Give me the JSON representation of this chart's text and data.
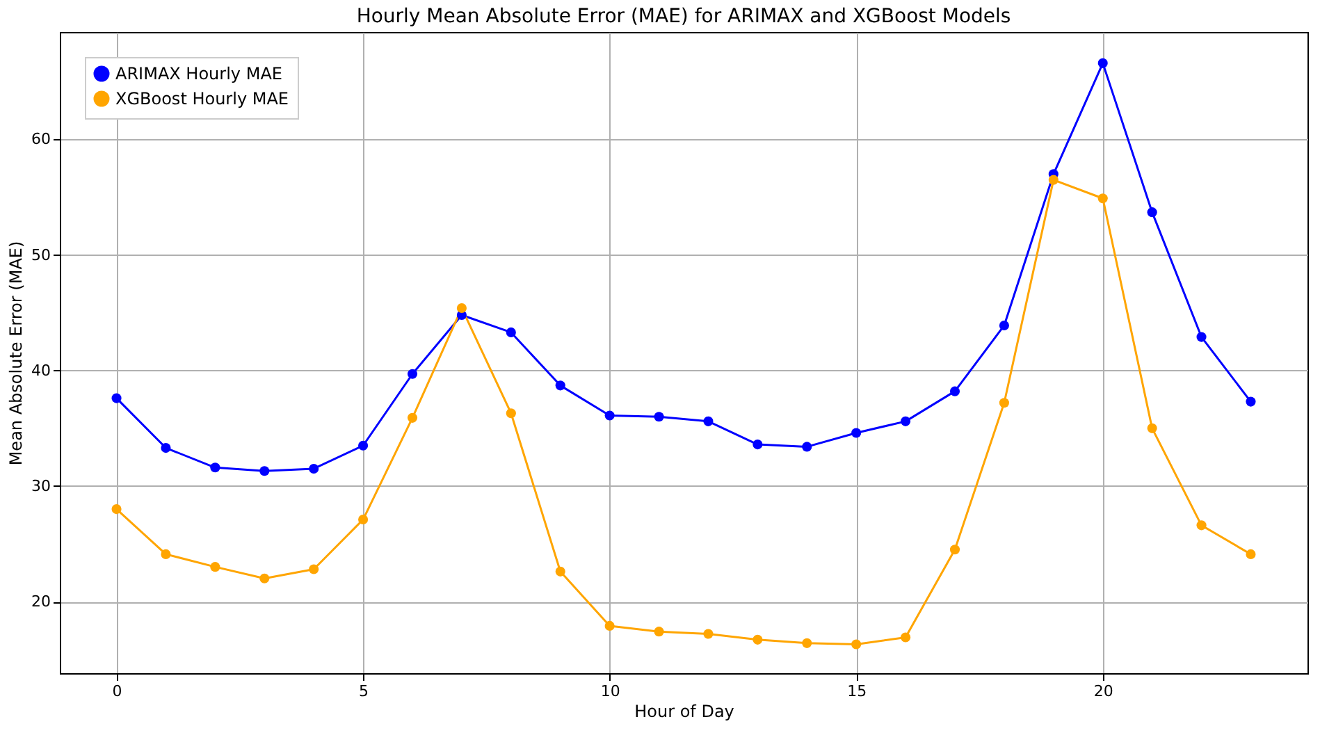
{
  "chart_data": {
    "type": "line",
    "title": "Hourly Mean Absolute Error (MAE) for ARIMAX and XGBoost Models",
    "xlabel": "Hour of Day",
    "ylabel": "Mean Absolute Error (MAE)",
    "x": [
      0,
      1,
      2,
      3,
      4,
      5,
      6,
      7,
      8,
      9,
      10,
      11,
      12,
      13,
      14,
      15,
      16,
      17,
      18,
      19,
      20,
      21,
      22,
      23
    ],
    "series": [
      {
        "name": "ARIMAX Hourly MAE",
        "color": "#0000ff",
        "values": [
          37.6,
          33.3,
          31.6,
          31.3,
          31.5,
          33.5,
          39.7,
          44.8,
          43.3,
          38.7,
          36.1,
          36.0,
          35.6,
          33.6,
          33.4,
          34.6,
          35.6,
          38.2,
          43.9,
          57.0,
          66.6,
          53.7,
          42.9,
          37.3
        ]
      },
      {
        "name": "XGBoost Hourly MAE",
        "color": "#ffa500",
        "values": [
          28.0,
          24.1,
          23.0,
          22.0,
          22.8,
          27.1,
          35.9,
          45.4,
          36.3,
          22.6,
          17.9,
          17.4,
          17.2,
          16.7,
          16.4,
          16.3,
          16.9,
          24.5,
          37.2,
          56.5,
          54.9,
          35.0,
          26.6,
          24.1
        ]
      }
    ],
    "xlim": [
      -1.15,
      24.15
    ],
    "xticks": [
      0,
      5,
      10,
      15,
      20
    ],
    "ylim": [
      13.8,
      69.3
    ],
    "yticks": [
      20,
      30,
      40,
      50,
      60
    ],
    "grid": true,
    "legend": "top left",
    "marker": "circle",
    "line_style": "solid"
  }
}
